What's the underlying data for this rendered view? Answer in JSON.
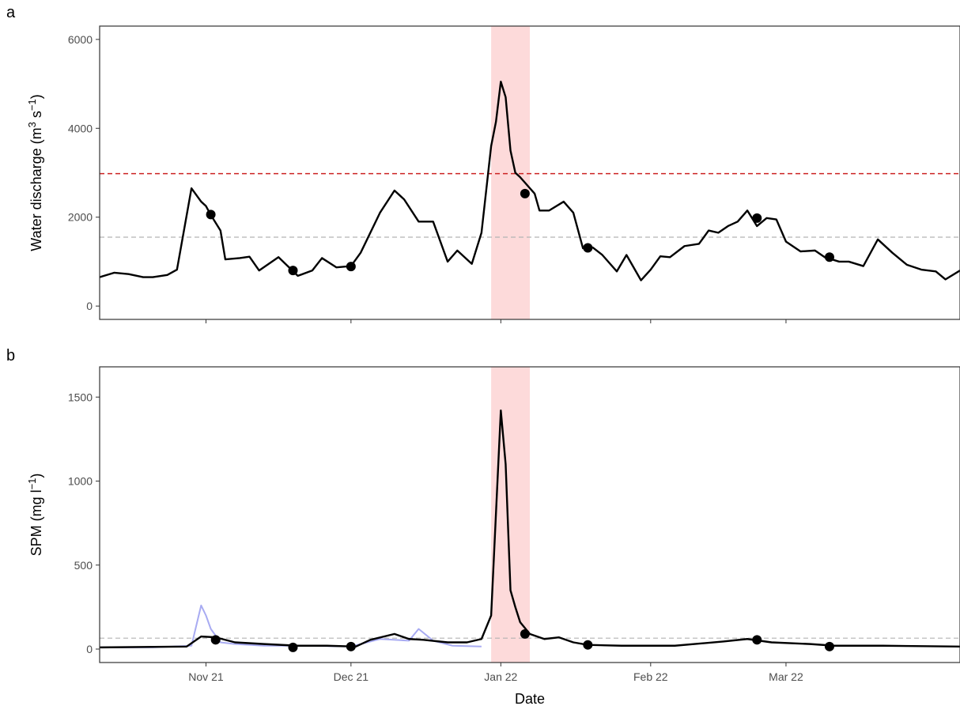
{
  "chart_data": [
    {
      "panel": "a",
      "type": "line",
      "xlabel": "",
      "ylabel": "Water discharge (m³ s⁻¹)",
      "ylabel_parts": [
        "Water discharge (m",
        "3",
        " s",
        "−1",
        ")"
      ],
      "ylim": [
        -300,
        6300
      ],
      "xlim": [
        "2021-10-09",
        "2022-04-05"
      ],
      "yticks": [
        "0",
        "2000",
        "4000",
        "6000"
      ],
      "ytick_values": [
        0,
        2000,
        4000,
        6000
      ],
      "grid": false,
      "highlight_range": [
        "2021-12-29",
        "2022-01-06"
      ],
      "reference_lines": [
        {
          "y": 2980,
          "color": "#cc2222",
          "style": "dashed"
        },
        {
          "y": 1550,
          "color": "#b3b3b3",
          "style": "dashed"
        }
      ],
      "series": [
        {
          "color": "#000000",
          "x": [
            "2021-10-09",
            "2021-10-12",
            "2021-10-15",
            "2021-10-18",
            "2021-10-20",
            "2021-10-23",
            "2021-10-25",
            "2021-10-28",
            "2021-10-30",
            "2021-10-31",
            "2021-11-01",
            "2021-11-03",
            "2021-11-04",
            "2021-11-07",
            "2021-11-09",
            "2021-11-11",
            "2021-11-15",
            "2021-11-19",
            "2021-11-22",
            "2021-11-24",
            "2021-11-27",
            "2021-11-30",
            "2021-12-02",
            "2021-12-06",
            "2021-12-09",
            "2021-12-11",
            "2021-12-14",
            "2021-12-17",
            "2021-12-20",
            "2021-12-22",
            "2021-12-25",
            "2021-12-27",
            "2021-12-29",
            "2021-12-30",
            "2021-12-31",
            "2022-01-01",
            "2022-01-02",
            "2022-01-03",
            "2022-01-04",
            "2022-01-07",
            "2022-01-08",
            "2022-01-10",
            "2022-01-13",
            "2022-01-15",
            "2022-01-17",
            "2022-01-19",
            "2022-01-21",
            "2022-01-24",
            "2022-01-26",
            "2022-01-29",
            "2022-01-31",
            "2022-02-02",
            "2022-02-04",
            "2022-02-07",
            "2022-02-10",
            "2022-02-12",
            "2022-02-14",
            "2022-02-16",
            "2022-02-18",
            "2022-02-20",
            "2022-02-22",
            "2022-02-24",
            "2022-02-26",
            "2022-02-28",
            "2022-03-03",
            "2022-03-06",
            "2022-03-08",
            "2022-03-11",
            "2022-03-13",
            "2022-03-16",
            "2022-03-19",
            "2022-03-22",
            "2022-03-25",
            "2022-03-28",
            "2022-03-31",
            "2022-04-02",
            "2022-04-05"
          ],
          "values": [
            650,
            750,
            720,
            650,
            650,
            700,
            820,
            2650,
            2350,
            2250,
            2050,
            1700,
            1050,
            1080,
            1110,
            800,
            1100,
            680,
            800,
            1080,
            870,
            900,
            1200,
            2100,
            2600,
            2400,
            1900,
            1900,
            1000,
            1250,
            950,
            1650,
            3600,
            4150,
            5050,
            4700,
            3500,
            3000,
            2900,
            2530,
            2150,
            2150,
            2350,
            2100,
            1300,
            1320,
            1150,
            780,
            1150,
            580,
            820,
            1120,
            1100,
            1350,
            1400,
            1700,
            1650,
            1800,
            1900,
            2150,
            1800,
            1980,
            1950,
            1450,
            1230,
            1250,
            1100,
            1000,
            1000,
            900,
            1500,
            1200,
            930,
            820,
            780,
            600,
            800
          ]
        }
      ],
      "points": {
        "x": [
          "2021-11-01",
          "2021-11-18",
          "2021-11-30",
          "2022-01-05",
          "2022-01-18",
          "2022-02-22",
          "2022-03-09"
        ],
        "y": [
          2060,
          800,
          890,
          2530,
          1310,
          1980,
          1100
        ]
      }
    },
    {
      "panel": "b",
      "type": "line",
      "xlabel": "Date",
      "ylabel": "SPM (mg l⁻¹)",
      "ylabel_parts": [
        "SPM (mg l",
        "−1",
        ")"
      ],
      "ylim": [
        -80,
        1680
      ],
      "xlim": [
        "2021-10-09",
        "2022-04-05"
      ],
      "yticks": [
        "0",
        "500",
        "1000",
        "1500"
      ],
      "ytick_values": [
        0,
        500,
        1000,
        1500
      ],
      "xticks": [
        "Nov 21",
        "Dec 21",
        "Jan 22",
        "Feb 22",
        "Mar 22"
      ],
      "xtick_dates": [
        "2021-10-31",
        "2021-11-30",
        "2021-12-31",
        "2022-01-31",
        "2022-02-28"
      ],
      "grid": false,
      "highlight_range": [
        "2021-12-29",
        "2022-01-06"
      ],
      "reference_lines": [
        {
          "y": 65,
          "color": "#b3b3b3",
          "style": "dashed"
        }
      ],
      "series": [
        {
          "color": "#a8abf2",
          "x": [
            "2021-10-09",
            "2021-10-20",
            "2021-10-28",
            "2021-10-30",
            "2021-10-31",
            "2021-11-01",
            "2021-11-03",
            "2021-11-06",
            "2021-11-12",
            "2021-11-20",
            "2021-11-30",
            "2021-12-06",
            "2021-12-12",
            "2021-12-14",
            "2021-12-17",
            "2021-12-21",
            "2021-12-27"
          ],
          "values": [
            10,
            10,
            20,
            260,
            200,
            120,
            40,
            30,
            20,
            20,
            15,
            60,
            50,
            120,
            50,
            20,
            15
          ]
        },
        {
          "color": "#000000",
          "x": [
            "2021-10-09",
            "2021-10-27",
            "2021-10-30",
            "2021-11-02",
            "2021-11-06",
            "2021-11-12",
            "2021-11-19",
            "2021-11-25",
            "2021-12-01",
            "2021-12-04",
            "2021-12-09",
            "2021-12-12",
            "2021-12-15",
            "2021-12-20",
            "2021-12-24",
            "2021-12-27",
            "2021-12-29",
            "2021-12-31",
            "2022-01-01",
            "2022-01-02",
            "2022-01-03",
            "2022-01-04",
            "2022-01-06",
            "2022-01-09",
            "2022-01-12",
            "2022-01-15",
            "2022-01-18",
            "2022-01-25",
            "2022-02-05",
            "2022-02-15",
            "2022-02-20",
            "2022-02-25",
            "2022-03-05",
            "2022-03-10",
            "2022-03-20",
            "2022-04-05"
          ],
          "values": [
            10,
            15,
            75,
            70,
            40,
            30,
            20,
            20,
            15,
            55,
            90,
            60,
            55,
            40,
            40,
            60,
            200,
            1420,
            1100,
            350,
            250,
            160,
            90,
            60,
            70,
            40,
            25,
            20,
            20,
            45,
            60,
            40,
            30,
            20,
            20,
            15
          ]
        }
      ],
      "points": {
        "x": [
          "2021-11-02",
          "2021-11-18",
          "2021-11-30",
          "2022-01-05",
          "2022-01-18",
          "2022-02-22",
          "2022-03-09"
        ],
        "y": [
          55,
          10,
          15,
          90,
          25,
          55,
          15
        ]
      }
    }
  ]
}
